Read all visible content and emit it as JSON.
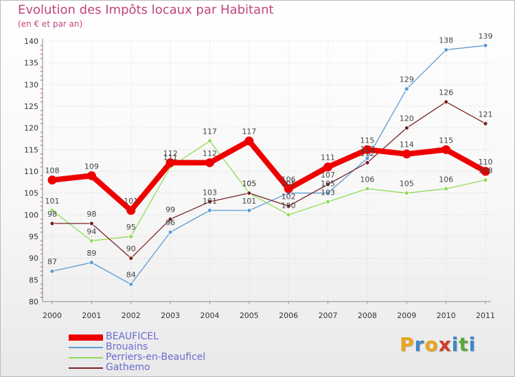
{
  "title": "Evolution des Impôts locaux par Habitant",
  "subtitle": "(en € et par an)",
  "logo": {
    "text": "Proxiti",
    "letters": [
      {
        "ch": "P",
        "color": "#e8a51d"
      },
      {
        "ch": "r",
        "color": "#3b86c6"
      },
      {
        "ch": "o",
        "color": "#e8a51d"
      },
      {
        "ch": "x",
        "color": "#d23a2c"
      },
      {
        "ch": "i",
        "color": "#3b86c6"
      },
      {
        "ch": "t",
        "color": "#5aa83a"
      },
      {
        "ch": "i",
        "color": "#3b86c6"
      }
    ]
  },
  "chart_data": {
    "type": "line",
    "title": "Evolution des Impôts locaux par Habitant",
    "subtitle": "(en € et par an)",
    "xlabel": "",
    "ylabel": "",
    "categories": [
      "2000",
      "2001",
      "2002",
      "2003",
      "2004",
      "2005",
      "2006",
      "2007",
      "2008",
      "2009",
      "2010",
      "2011"
    ],
    "ylim": [
      80,
      140
    ],
    "yticks": [
      80,
      85,
      90,
      95,
      100,
      105,
      110,
      115,
      120,
      125,
      130,
      135,
      140
    ],
    "grid": true,
    "legend_position": "bottom-left",
    "series": [
      {
        "name": "BEAUFICEL",
        "color": "#ee0000",
        "values": [
          108,
          109,
          101,
          112,
          112,
          117,
          106,
          111,
          115,
          114,
          115,
          110
        ]
      },
      {
        "name": "Brouains",
        "color": "#5a9bd5",
        "values": [
          87,
          89,
          84,
          96,
          101,
          101,
          105,
          105,
          113,
          129,
          138,
          139
        ]
      },
      {
        "name": "Perriers-en-Beauficel",
        "color": "#8fdc55",
        "values": [
          101,
          94,
          95,
          111,
          117,
          105,
          100,
          103,
          106,
          105,
          106,
          108
        ]
      },
      {
        "name": "Gathemo",
        "color": "#772222",
        "values": [
          98,
          98,
          90,
          99,
          103,
          105,
          102,
          107,
          112,
          120,
          126,
          121
        ]
      }
    ]
  }
}
